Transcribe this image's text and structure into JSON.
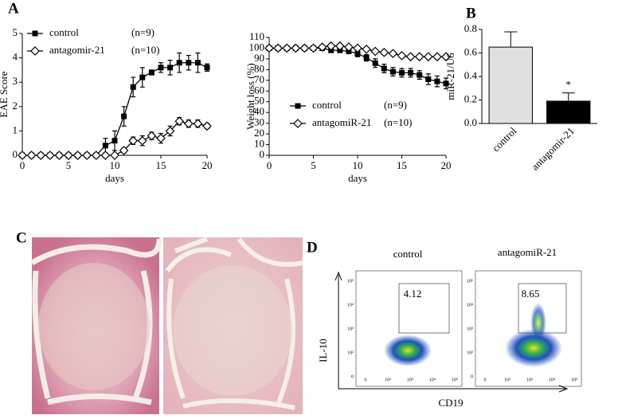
{
  "panel_labels": [
    "A",
    "B",
    "C",
    "D"
  ],
  "chart_data": [
    {
      "type": "line",
      "ylabel": "EAE Score",
      "xlabel": "days",
      "legend": "upper left",
      "x": [
        0,
        1,
        2,
        3,
        4,
        5,
        6,
        7,
        8,
        9,
        10,
        11,
        12,
        13,
        14,
        15,
        16,
        17,
        18,
        19,
        20
      ],
      "series": [
        {
          "name": "control",
          "n": "(n=9)",
          "color": "#000000",
          "marker": "square",
          "values": [
            0,
            0,
            0,
            0,
            0,
            0,
            0,
            0,
            0,
            0.4,
            0.6,
            1.6,
            2.8,
            3.2,
            3.4,
            3.6,
            3.6,
            3.8,
            3.8,
            3.8,
            3.6
          ],
          "errors": [
            0,
            0,
            0,
            0,
            0,
            0,
            0,
            0,
            0,
            0.3,
            0.4,
            0.4,
            0.4,
            0.4,
            0.1,
            0.2,
            0.3,
            0.4,
            0.3,
            0.4,
            0.15
          ]
        },
        {
          "name": "antagomir-21",
          "n": "(n=10)",
          "color": "#000000",
          "marker": "diamond",
          "values": [
            0,
            0,
            0,
            0,
            0,
            0,
            0,
            0,
            0,
            0,
            0,
            0.2,
            0.6,
            0.6,
            0.8,
            0.7,
            1.0,
            1.4,
            1.3,
            1.3,
            1.2
          ],
          "errors": [
            0,
            0,
            0,
            0,
            0,
            0,
            0,
            0,
            0,
            0,
            0,
            0.1,
            0.15,
            0.2,
            0.15,
            0.2,
            0.2,
            0.15,
            0.15,
            0.15,
            0.1
          ]
        }
      ],
      "xlim": [
        0,
        20
      ],
      "xticks": [
        0,
        5,
        10,
        15,
        20
      ],
      "ylim": [
        0,
        5
      ],
      "yticks": [
        0,
        1,
        2,
        3,
        4,
        5
      ]
    },
    {
      "type": "line",
      "ylabel": "Weight loss (%)",
      "xlabel": "days",
      "legend": "center right",
      "x": [
        0,
        1,
        2,
        3,
        4,
        5,
        6,
        7,
        8,
        9,
        10,
        11,
        12,
        13,
        14,
        15,
        16,
        17,
        18,
        19,
        20
      ],
      "series": [
        {
          "name": "control",
          "n": "(n=9)",
          "color": "#000000",
          "marker": "square",
          "values": [
            100,
            100,
            100,
            100,
            100,
            100,
            100,
            98,
            98,
            97,
            95,
            91,
            86,
            81,
            78,
            77,
            77,
            75,
            71,
            69,
            67
          ],
          "errors": [
            1,
            1,
            1,
            1,
            1,
            1,
            1,
            2,
            2,
            2,
            3,
            3,
            4,
            4,
            4,
            4,
            4,
            4,
            5,
            5,
            5
          ]
        },
        {
          "name": "antagomiR-21",
          "n": "(n=10)",
          "color": "#000000",
          "marker": "diamond",
          "values": [
            100,
            100,
            100,
            100,
            100,
            100,
            101,
            102,
            102,
            101,
            100,
            99,
            97,
            96,
            95,
            93,
            92,
            92,
            92,
            92,
            92
          ],
          "errors": [
            1,
            1,
            1,
            1,
            1,
            1,
            1,
            1,
            1,
            1,
            1,
            1,
            2,
            2,
            2,
            2,
            2,
            2,
            2,
            2,
            2
          ]
        }
      ],
      "xlim": [
        0,
        20
      ],
      "xticks": [
        0,
        5,
        10,
        15,
        20
      ],
      "ylim": [
        0,
        110
      ],
      "yticks": [
        0,
        10,
        20,
        30,
        40,
        50,
        60,
        70,
        80,
        90,
        100,
        110
      ]
    },
    {
      "type": "bar",
      "ylabel": "miR-21/U6",
      "categories": [
        "control",
        "antagomir-21"
      ],
      "values": [
        0.65,
        0.19
      ],
      "errors": [
        0.13,
        0.07
      ],
      "colors": [
        "#e0e0e0",
        "#000000"
      ],
      "annotations": [
        null,
        "*"
      ],
      "ylim": [
        0,
        0.8
      ],
      "yticks": [
        {
          "value": 0,
          "label": "0.0"
        },
        0.2,
        0.4,
        0.6,
        0.8
      ]
    }
  ],
  "flow": {
    "titles": [
      "control",
      "antagomiR-21"
    ],
    "gates": [
      "4.12",
      "8.65"
    ],
    "xlabel": "CD19",
    "ylabel": "IL-10",
    "yticks": [
      "10⁵",
      "10⁴",
      "10³",
      "10²",
      "0"
    ],
    "xticks": [
      "0",
      "10²",
      "10³",
      "10⁴",
      "10⁵"
    ]
  }
}
